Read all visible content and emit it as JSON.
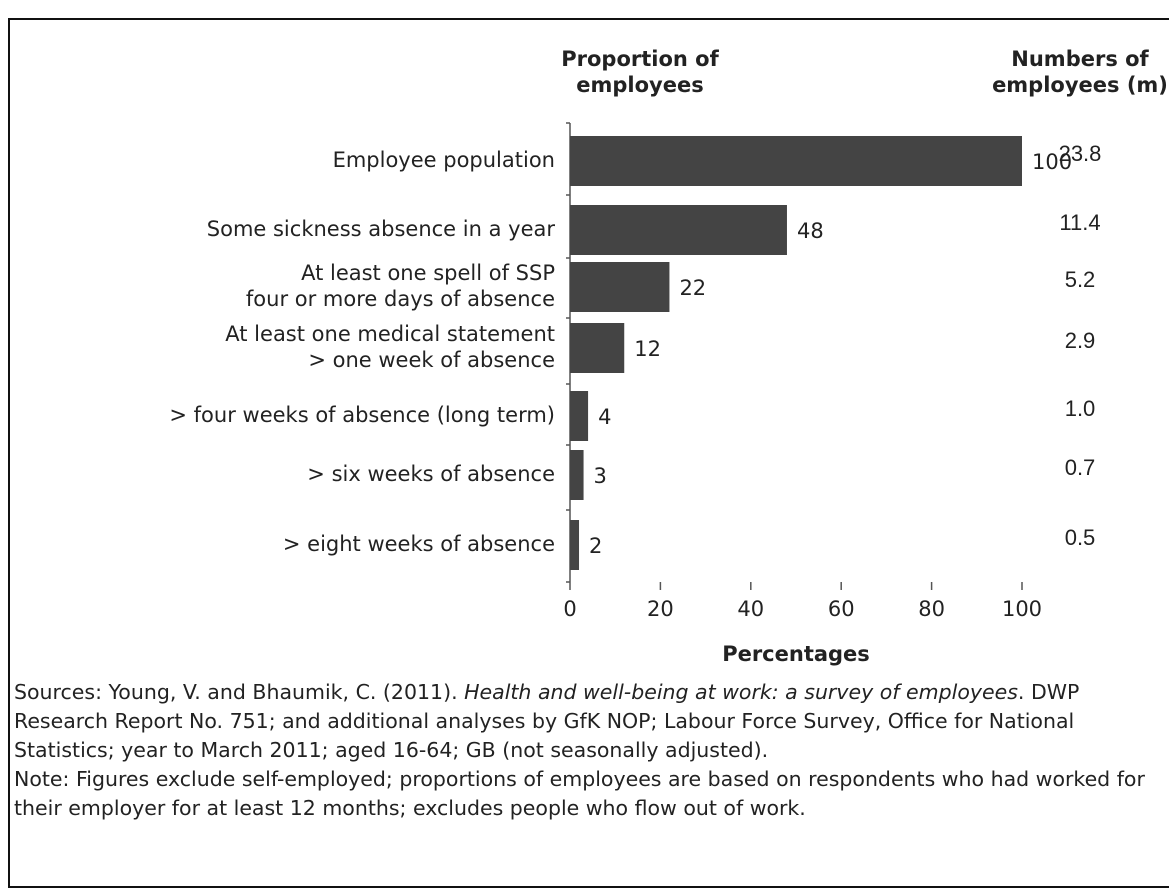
{
  "chart_data": {
    "type": "bar",
    "orientation": "horizontal",
    "title": "Proportion of\nemployees",
    "xlabel": "Percentages",
    "categories": [
      "Employee population",
      "Some sickness absence in a year",
      "At least one spell of SSP\nfour or more days of absence",
      "At least one medical statement\n> one week of absence",
      "> four weeks of absence (long term)",
      "> six weeks of absence",
      "> eight weeks of absence"
    ],
    "values": [
      100,
      48,
      22,
      12,
      4,
      3,
      2
    ],
    "color": "#444444",
    "xlim": [
      0,
      100
    ],
    "xticks": [
      0,
      20,
      40,
      60,
      80,
      100
    ],
    "numbers_header": "Numbers of\nemployees (m)",
    "numbers": [
      "23.8",
      "11.4",
      "5.2",
      "2.9",
      "1.0",
      "0.7",
      "0.5"
    ]
  },
  "sources": [
    "Sources: Young, V. and Bhaumik, C. (2011). ",
    "Health and well-being at work: a survey of employees",
    ". DWP Research Report No. 751; and additional analyses by GfK NOP; Labour Force Survey, Office for National Statistics; year to March 2011; aged 16-64; GB (not seasonally adjusted)."
  ],
  "note": "Note: Figures exclude self-employed; proportions of employees are based on respondents who had worked for their employer for at least 12 months; excludes people who flow out of work."
}
